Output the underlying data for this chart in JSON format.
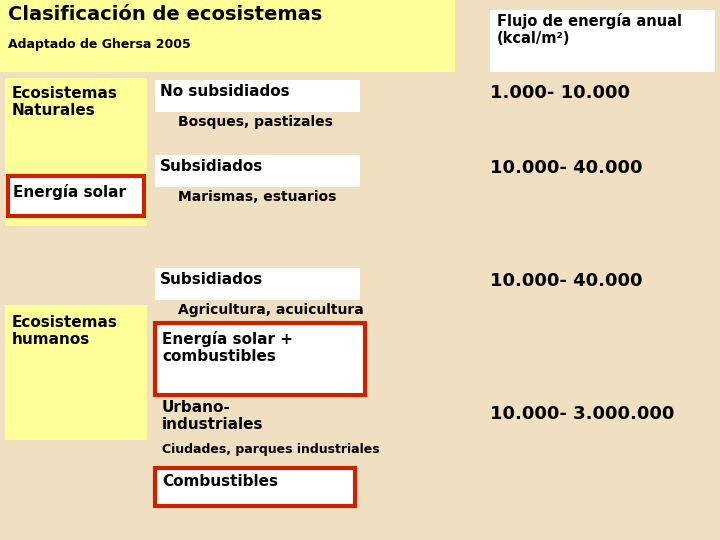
{
  "bg_color": "#f0dfc0",
  "title": "Clasificación de ecosistemas",
  "subtitle": "Adaptado de Ghersa 2005",
  "title_bg": "#ffff99",
  "header_right": "Flujo de energía anual\n(kcal/m²)",
  "header_right_bg": "#ffffff",
  "eco_nat_label": "Ecosistemas\nNaturales",
  "eco_nat_bg": "#ffff99",
  "eco_hum_label": "Ecosistemas\nhumanos",
  "eco_hum_bg": "#ffff99",
  "energia_solar_label": "Energía solar",
  "energia_solar_bg": "#ffffff",
  "energia_solar_border": "#cc2200",
  "no_subsidiados_label": "No subsidiados",
  "no_subsidiados_bg": "#ffffff",
  "bosques_label": "Bosques, pastizales",
  "valor1": "1.000- 10.000",
  "subsidiados1_label": "Subsidiados",
  "subsidiados1_bg": "#ffffff",
  "marismas_label": "Marismas, estuarios",
  "valor2": "10.000- 40.000",
  "subsidiados2_label": "Subsidiados",
  "subsidiados2_bg": "#ffffff",
  "agricultura_label": "Agricultura, acuicultura",
  "valor3": "10.000- 40.000",
  "energia_solar_comb_label": "Energía solar +\ncombustibles",
  "energia_solar_comb_bg": "#ffffff",
  "energia_solar_comb_border": "#cc2200",
  "urbano_label": "Urbano-\nindustriales",
  "ciudades_label": "Ciudades, parques industriales",
  "valor4": "10.000- 3.000.000",
  "combustibles_label": "Combustibles",
  "combustibles_bg": "#ffffff",
  "combustibles_border": "#cc2200",
  "red_border_lw": 3.0,
  "title_fontsize": 14,
  "label_fontsize": 11,
  "small_fontsize": 9,
  "value_fontsize": 13
}
